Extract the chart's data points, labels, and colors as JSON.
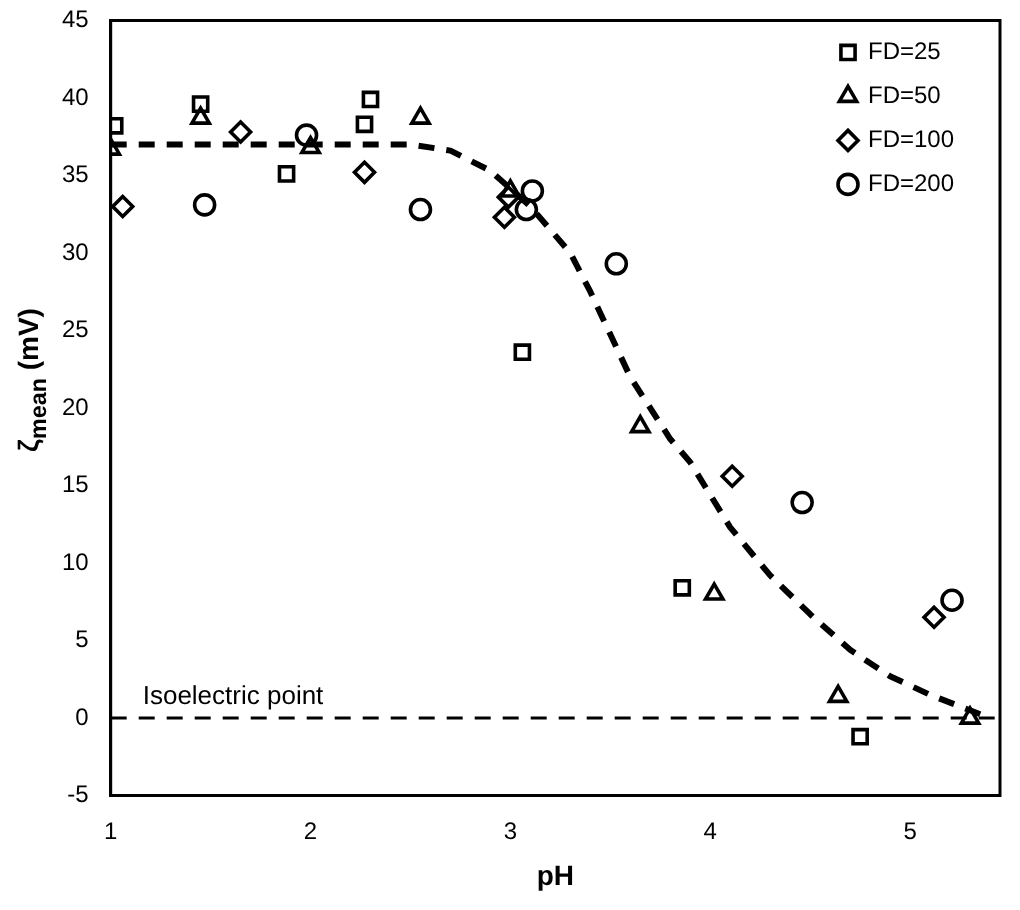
{
  "chart_data": {
    "type": "scatter",
    "xlabel": "pH",
    "ylabel": "ζ$_{mean}$ (mV)",
    "xlim": [
      1,
      5.45
    ],
    "xticks": [
      1,
      2,
      3,
      4,
      5
    ],
    "ylim": [
      -5,
      45
    ],
    "yticks": [
      -5,
      0,
      5,
      10,
      15,
      20,
      25,
      30,
      35,
      40,
      45
    ],
    "grid": false,
    "legend": "top right",
    "series": [
      {
        "name": "FD=25",
        "color": "#000000",
        "marker": "square",
        "x": [
          1.02,
          1.45,
          1.88,
          2.27,
          2.3,
          3.06,
          3.86,
          4.75
        ],
        "values": [
          38.2,
          39.6,
          35.1,
          38.3,
          39.9,
          23.6,
          8.4,
          -1.2
        ]
      },
      {
        "name": "FD=50",
        "color": "#000000",
        "marker": "triangle",
        "x": [
          1.0,
          1.45,
          2.0,
          2.55,
          3.0,
          3.65,
          4.02,
          4.64,
          5.3
        ],
        "values": [
          36.7,
          38.7,
          36.8,
          38.7,
          34.0,
          18.8,
          8.0,
          1.4,
          0.0
        ]
      },
      {
        "name": "FD=100",
        "color": "#000000",
        "marker": "diamond",
        "x": [
          1.06,
          1.65,
          2.27,
          2.97,
          2.99,
          4.11,
          5.12
        ],
        "values": [
          33.0,
          37.8,
          35.2,
          32.3,
          33.6,
          15.6,
          6.5
        ]
      },
      {
        "name": "FD=200",
        "color": "#000000",
        "marker": "circle",
        "x": [
          1.47,
          1.98,
          2.55,
          3.08,
          3.11,
          3.53,
          4.46,
          5.21
        ],
        "values": [
          33.1,
          37.6,
          32.8,
          32.8,
          34.0,
          29.3,
          13.9,
          7.6
        ]
      },
      {
        "type": "line",
        "color": "#000000",
        "marker": "none",
        "line_style": "dashed",
        "x": [
          1,
          2.5,
          2.7,
          2.9,
          3.1,
          3.3,
          3.4,
          3.6,
          3.8,
          3.9,
          4.1,
          4.3,
          4.5,
          4.7,
          4.9,
          5.1,
          5.3,
          5.4
        ],
        "values": [
          37,
          37,
          36.6,
          35.3,
          33,
          30,
          27.5,
          22,
          18,
          16.5,
          12.3,
          9.2,
          6.7,
          4.4,
          2.7,
          1.5,
          0.5,
          0
        ]
      }
    ],
    "ref_lines": [
      {
        "axis": "y",
        "value": 0,
        "label": "Isoelectric point",
        "color": "#000000",
        "line_style": "dashed"
      }
    ]
  }
}
